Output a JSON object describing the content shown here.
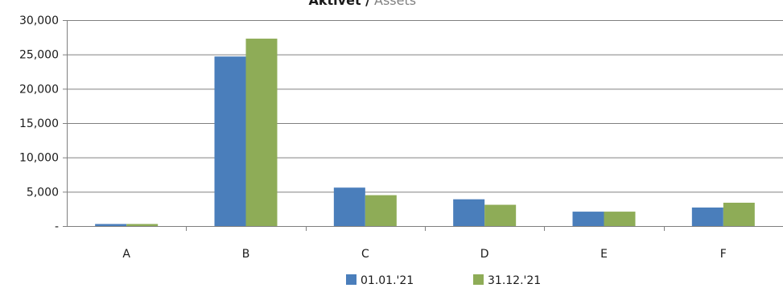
{
  "chart_data": {
    "type": "bar",
    "title_main": "Aktivet /",
    "title_secondary": "Assets",
    "categories": [
      "A",
      "B",
      "C",
      "D",
      "E",
      "F"
    ],
    "series": [
      {
        "name": "01.01.'21",
        "color": "#4a7ebb",
        "values": [
          300,
          24700,
          5600,
          3900,
          2100,
          2700
        ]
      },
      {
        "name": "31.12.'21",
        "color": "#8eac57",
        "values": [
          300,
          27300,
          4500,
          3100,
          2100,
          3400
        ]
      }
    ],
    "ylim": [
      0,
      30000
    ],
    "y_ticks": [
      0,
      5000,
      10000,
      15000,
      20000,
      25000,
      30000
    ],
    "y_tick_labels": [
      "-",
      "5,000",
      "10,000",
      "15,000",
      "20,000",
      "25,000",
      "30,000"
    ],
    "grid": true,
    "legend_position": "bottom"
  }
}
